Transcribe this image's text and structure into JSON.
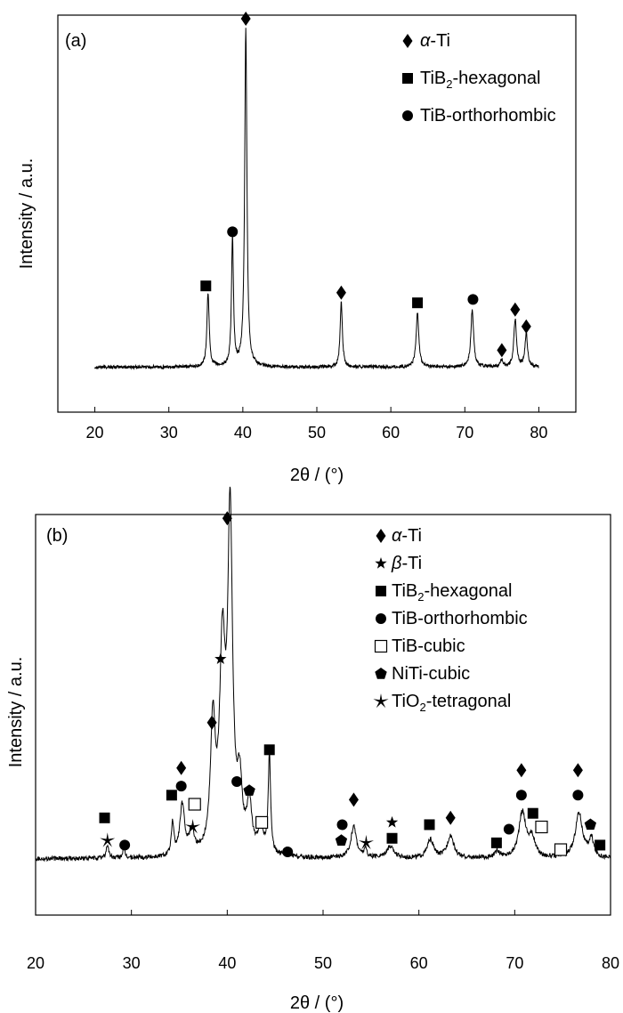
{
  "chart_data": [
    {
      "type": "line",
      "panel_label": "(a)",
      "xlabel": "2θ / (°)",
      "ylabel": "Intensity / a.u.",
      "xlim": [
        15,
        85
      ],
      "ylim": [
        0,
        100
      ],
      "xticks": [
        "20",
        "30",
        "40",
        "50",
        "60",
        "70",
        "80"
      ],
      "grid": false,
      "legend_position": "top-right",
      "legend": [
        {
          "label": "α-Ti",
          "marker": "diamond-icon"
        },
        {
          "label": "TiB2-hexagonal",
          "marker": "square-icon"
        },
        {
          "label": "TiB-orthorhombic",
          "marker": "circle-icon"
        }
      ],
      "series": [
        {
          "baseline": 2,
          "noise": 0.5,
          "x_range": [
            20,
            80
          ],
          "peaks": [
            {
              "x": 35.3,
              "h": 22,
              "w": 0.18
            },
            {
              "x": 38.6,
              "h": 38,
              "w": 0.16
            },
            {
              "x": 40.4,
              "h": 100,
              "w": 0.18
            },
            {
              "x": 53.3,
              "h": 19,
              "w": 0.18
            },
            {
              "x": 63.6,
              "h": 16,
              "w": 0.22
            },
            {
              "x": 71.0,
              "h": 17,
              "w": 0.22
            },
            {
              "x": 75.0,
              "h": 2,
              "w": 0.22
            },
            {
              "x": 76.8,
              "h": 14,
              "w": 0.22
            },
            {
              "x": 78.3,
              "h": 10,
              "w": 0.2
            }
          ]
        }
      ],
      "markers": [
        {
          "shape": "square-icon",
          "x": 35.0,
          "y": 26
        },
        {
          "shape": "circle-icon",
          "x": 38.6,
          "y": 42
        },
        {
          "shape": "diamond-icon",
          "x": 40.4,
          "y": 105
        },
        {
          "shape": "diamond-icon",
          "x": 53.3,
          "y": 24
        },
        {
          "shape": "square-icon",
          "x": 63.6,
          "y": 21
        },
        {
          "shape": "circle-icon",
          "x": 71.1,
          "y": 22
        },
        {
          "shape": "diamond-icon",
          "x": 75.0,
          "y": 7
        },
        {
          "shape": "diamond-icon",
          "x": 76.8,
          "y": 19
        },
        {
          "shape": "diamond-icon",
          "x": 78.3,
          "y": 14
        }
      ]
    },
    {
      "type": "line",
      "panel_label": "(b)",
      "xlabel": "2θ / (°)",
      "ylabel": "Intensity / a.u.",
      "xlim": [
        20,
        80
      ],
      "ylim": [
        0,
        100
      ],
      "xticks": [
        "20",
        "30",
        "40",
        "50",
        "60",
        "70",
        "80"
      ],
      "grid": false,
      "legend_position": "top-right",
      "legend": [
        {
          "label": "α-Ti",
          "marker": "diamond-icon"
        },
        {
          "label": "β-Ti",
          "marker": "star-icon"
        },
        {
          "label": "TiB2-hexagonal",
          "marker": "square-icon"
        },
        {
          "label": "TiB-orthorhombic",
          "marker": "circle-icon"
        },
        {
          "label": "TiB-cubic",
          "marker": "open-square-icon"
        },
        {
          "label": "NiTi-cubic",
          "marker": "pentagon-icon"
        },
        {
          "label": "TiO2-tetragonal",
          "marker": "asterisk-icon"
        }
      ],
      "series": [
        {
          "baseline": 3,
          "noise": 0.5,
          "x_range": [
            20,
            80
          ],
          "peaks": [
            {
              "x": 27.5,
              "h": 3,
              "w": 0.15
            },
            {
              "x": 29.2,
              "h": 2,
              "w": 0.15
            },
            {
              "x": 34.3,
              "h": 7,
              "w": 0.15
            },
            {
              "x": 35.3,
              "h": 11,
              "w": 0.3
            },
            {
              "x": 36.3,
              "h": 5,
              "w": 0.3
            },
            {
              "x": 38.5,
              "h": 28,
              "w": 0.3
            },
            {
              "x": 39.5,
              "h": 43,
              "w": 0.35
            },
            {
              "x": 40.3,
              "h": 73,
              "w": 0.3
            },
            {
              "x": 41.3,
              "h": 14,
              "w": 0.3
            },
            {
              "x": 42.3,
              "h": 11,
              "w": 0.3
            },
            {
              "x": 43.5,
              "h": 6,
              "w": 0.3
            },
            {
              "x": 44.4,
              "h": 22,
              "w": 0.15
            },
            {
              "x": 46.2,
              "h": 1.5,
              "w": 0.2
            },
            {
              "x": 53.2,
              "h": 7,
              "w": 0.35
            },
            {
              "x": 54.4,
              "h": 2,
              "w": 0.15
            },
            {
              "x": 57.0,
              "h": 2.5,
              "w": 0.5
            },
            {
              "x": 61.2,
              "h": 4,
              "w": 0.4
            },
            {
              "x": 63.3,
              "h": 5,
              "w": 0.4
            },
            {
              "x": 68.2,
              "h": 1.5,
              "w": 0.3
            },
            {
              "x": 70.8,
              "h": 10,
              "w": 0.45
            },
            {
              "x": 71.8,
              "h": 4,
              "w": 0.4
            },
            {
              "x": 76.7,
              "h": 10,
              "w": 0.45
            },
            {
              "x": 78.0,
              "h": 4,
              "w": 0.3
            }
          ]
        }
      ],
      "markers": [
        {
          "shape": "square-icon",
          "x": 27.2,
          "y": 12
        },
        {
          "shape": "asterisk-icon",
          "x": 27.5,
          "y": 7
        },
        {
          "shape": "circle-icon",
          "x": 29.3,
          "y": 6
        },
        {
          "shape": "square-icon",
          "x": 34.2,
          "y": 17
        },
        {
          "shape": "diamond-icon",
          "x": 35.2,
          "y": 23
        },
        {
          "shape": "circle-icon",
          "x": 35.2,
          "y": 19
        },
        {
          "shape": "open-square-icon",
          "x": 36.6,
          "y": 15
        },
        {
          "shape": "asterisk-icon",
          "x": 36.4,
          "y": 10
        },
        {
          "shape": "diamond-icon",
          "x": 38.4,
          "y": 33
        },
        {
          "shape": "star-icon",
          "x": 39.3,
          "y": 47
        },
        {
          "shape": "diamond-icon",
          "x": 40.0,
          "y": 78
        },
        {
          "shape": "circle-icon",
          "x": 41.0,
          "y": 20
        },
        {
          "shape": "pentagon-icon",
          "x": 42.3,
          "y": 18
        },
        {
          "shape": "open-square-icon",
          "x": 43.6,
          "y": 11
        },
        {
          "shape": "square-icon",
          "x": 44.4,
          "y": 27
        },
        {
          "shape": "circle-icon",
          "x": 46.3,
          "y": 4.5
        },
        {
          "shape": "circle-icon",
          "x": 52.0,
          "y": 10.5
        },
        {
          "shape": "pentagon-icon",
          "x": 51.9,
          "y": 7
        },
        {
          "shape": "diamond-icon",
          "x": 53.2,
          "y": 16
        },
        {
          "shape": "asterisk-icon",
          "x": 54.5,
          "y": 6.5
        },
        {
          "shape": "star-icon",
          "x": 57.2,
          "y": 11
        },
        {
          "shape": "square-icon",
          "x": 57.2,
          "y": 7.5
        },
        {
          "shape": "square-icon",
          "x": 61.1,
          "y": 10.5
        },
        {
          "shape": "diamond-icon",
          "x": 63.3,
          "y": 12
        },
        {
          "shape": "square-icon",
          "x": 68.1,
          "y": 6.5
        },
        {
          "shape": "circle-icon",
          "x": 69.4,
          "y": 9.5
        },
        {
          "shape": "diamond-icon",
          "x": 70.7,
          "y": 22.5
        },
        {
          "shape": "circle-icon",
          "x": 70.7,
          "y": 17
        },
        {
          "shape": "square-icon",
          "x": 71.9,
          "y": 13
        },
        {
          "shape": "open-square-icon",
          "x": 72.8,
          "y": 10
        },
        {
          "shape": "open-square-icon",
          "x": 74.8,
          "y": 5
        },
        {
          "shape": "diamond-icon",
          "x": 76.6,
          "y": 22.5
        },
        {
          "shape": "circle-icon",
          "x": 76.6,
          "y": 17
        },
        {
          "shape": "pentagon-icon",
          "x": 77.9,
          "y": 10.5
        },
        {
          "shape": "square-icon",
          "x": 78.9,
          "y": 6
        }
      ]
    }
  ]
}
